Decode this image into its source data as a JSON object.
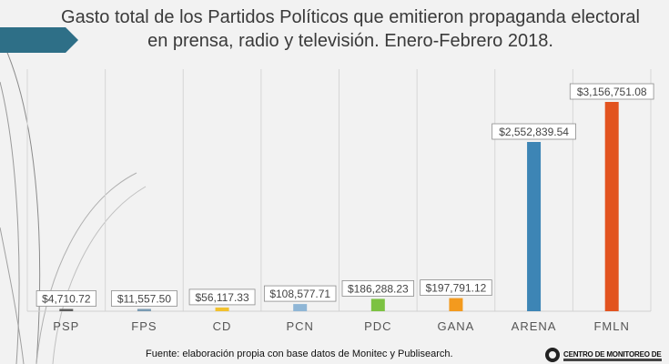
{
  "title_line1": "Gasto total de los Partidos Políticos que emitieron propaganda electoral",
  "title_line2": "en prensa, radio y televisión. Enero-Febrero 2018.",
  "source": "Fuente: elaboración propia con base datos de Monitec y Publisearch.",
  "logo_text": "CENTRO DE MONITOREO DE",
  "colors": {
    "accent_arrow": "#2e6f87",
    "background": "#f2f2f2"
  },
  "chart_data": {
    "type": "bar",
    "title": "Gasto total de los Partidos Políticos que emitieron propaganda electoral en prensa, radio y televisión. Enero-Febrero 2018.",
    "categories": [
      "PSP",
      "FPS",
      "CD",
      "PCN",
      "PDC",
      "GANA",
      "ARENA",
      "FMLN"
    ],
    "values": [
      4710.72,
      11557.5,
      56117.33,
      108577.71,
      186288.23,
      197791.12,
      2552839.54,
      3156751.08
    ],
    "labels": [
      "$4,710.72",
      "$11,557.50",
      "$56,117.33",
      "$108,577.71",
      "$186,288.23",
      "$197,791.12",
      "$2,552,839.54",
      "$3,156,751.08"
    ],
    "colors": [
      "#5d5d5d",
      "#7a9bb3",
      "#f2c12e",
      "#8fb6d6",
      "#7cc242",
      "#f39a1e",
      "#3d85b5",
      "#e2531f"
    ],
    "ylim": [
      0,
      3156751.08
    ],
    "grid": "vertical",
    "legend": "none"
  }
}
